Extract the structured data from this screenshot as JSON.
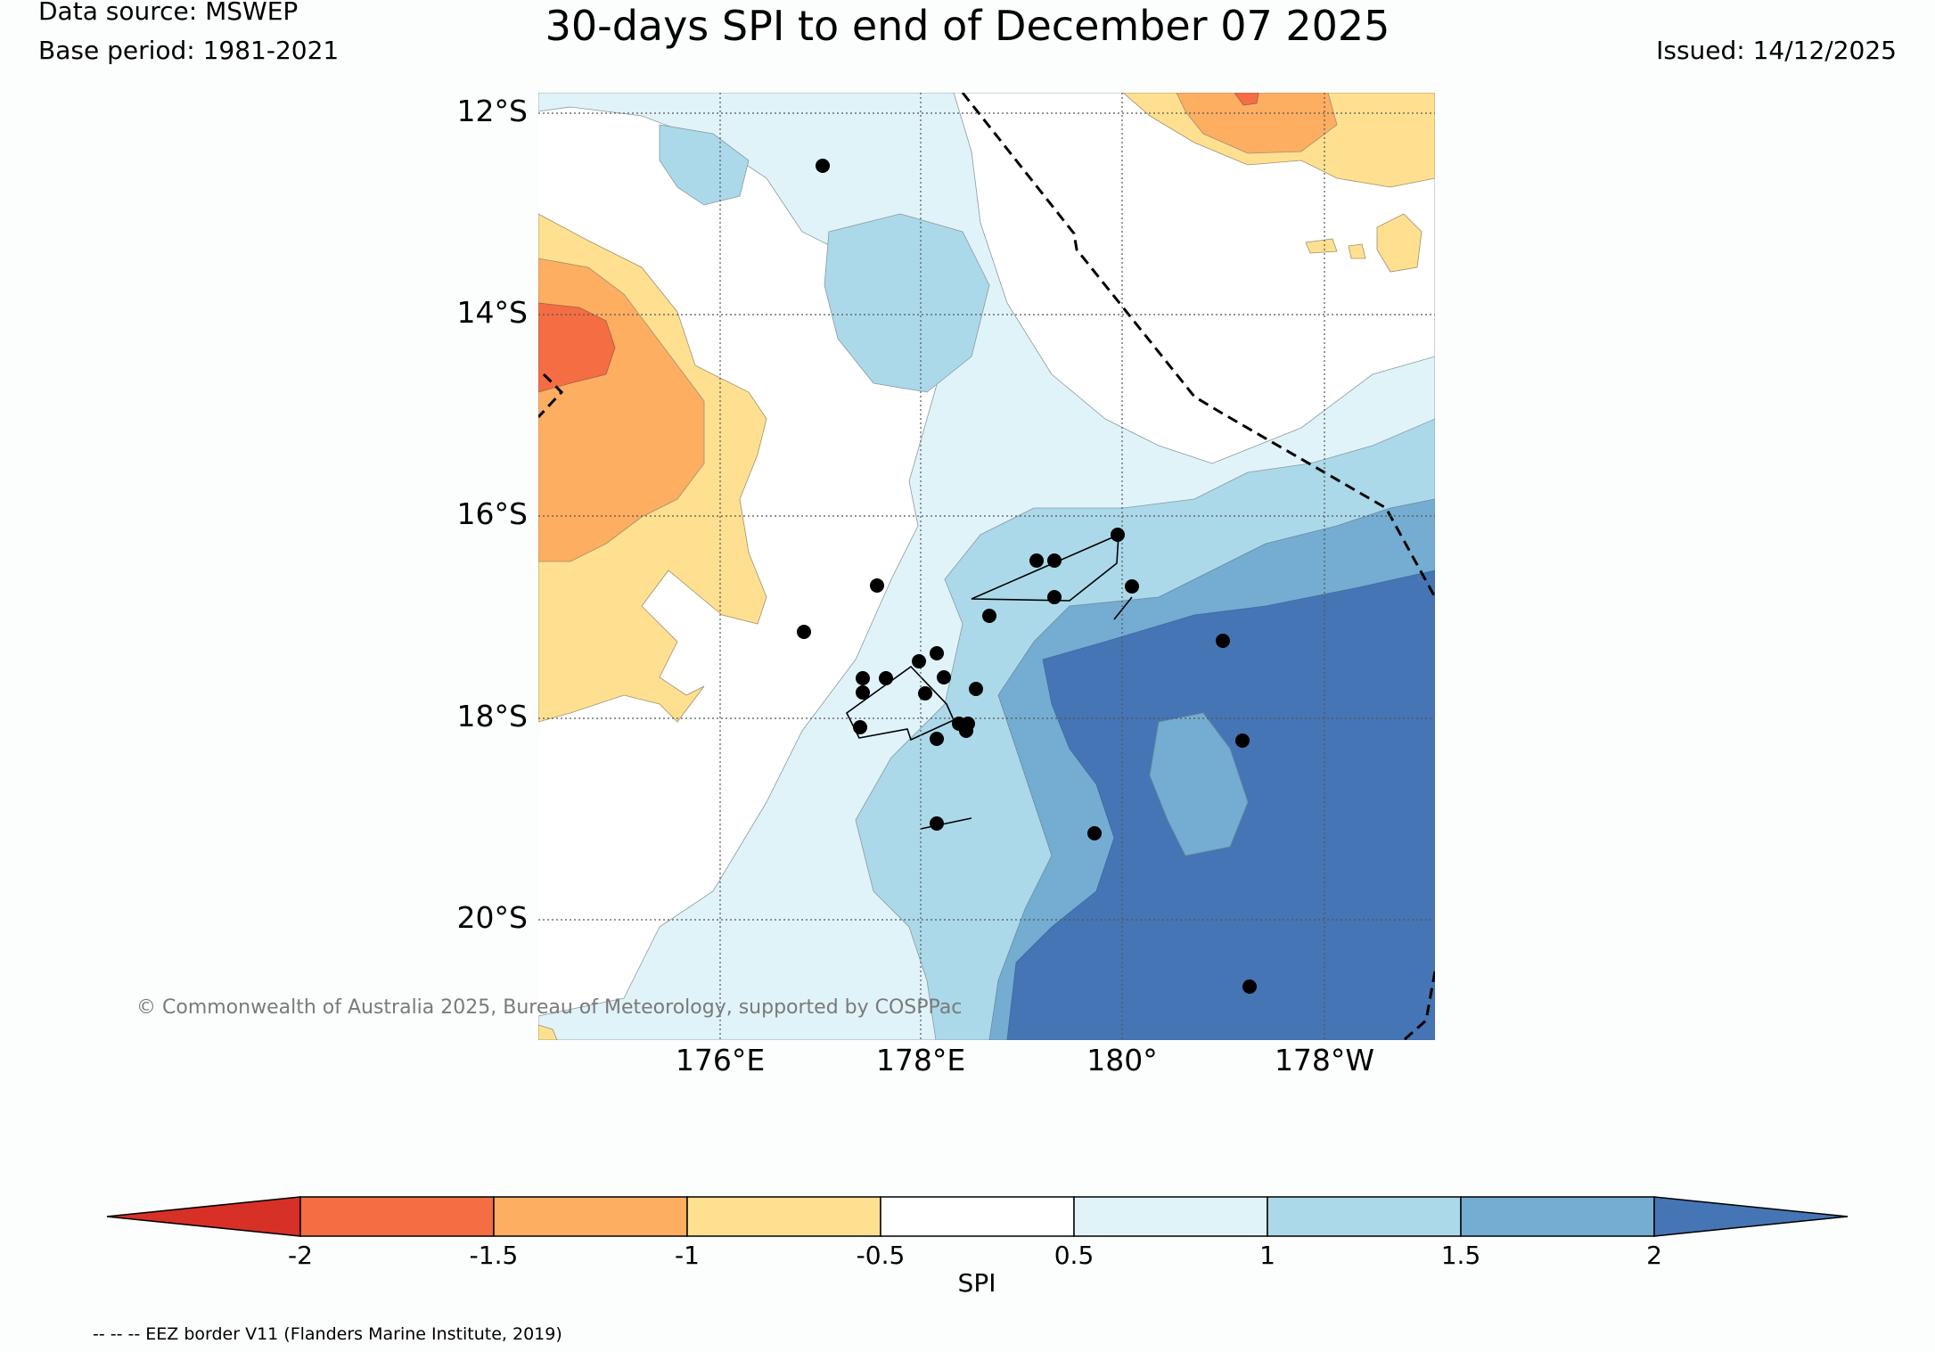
{
  "header": {
    "source": "Data source: MSWEP",
    "base_period": "Base period: 1981-2021",
    "title": "30-days SPI to end of December 07 2025",
    "issued": "Issued: 14/12/2025"
  },
  "map": {
    "lat_labels": [
      "12°S",
      "14°S",
      "16°S",
      "18°S",
      "20°S"
    ],
    "lon_labels": [
      "176°E",
      "178°E",
      "180°",
      "178°W"
    ],
    "copyright": "© Commonwealth of Australia 2025, Bureau of Meteorology, supported by COSPPac",
    "colors": {
      "cat_lt_m2": "#d73027",
      "cat_m2_m15": "#f46d43",
      "cat_m15_m1": "#fdae61",
      "cat_m1_m05": "#fee090",
      "cat_m05_05": "#ffffff",
      "cat_05_1": "#e0f3f8",
      "cat_1_15": "#abd9e9",
      "cat_15_2": "#74add1",
      "cat_gt_2": "#4575b4"
    }
  },
  "colorbar": {
    "ticks": [
      "-2",
      "-1.5",
      "-1",
      "-0.5",
      "0.5",
      "1",
      "1.5",
      "2"
    ],
    "label": "SPI"
  },
  "footer": {
    "eez_note": "-- -- -- EEZ border V11 (Flanders Marine Institute, 2019)"
  }
}
